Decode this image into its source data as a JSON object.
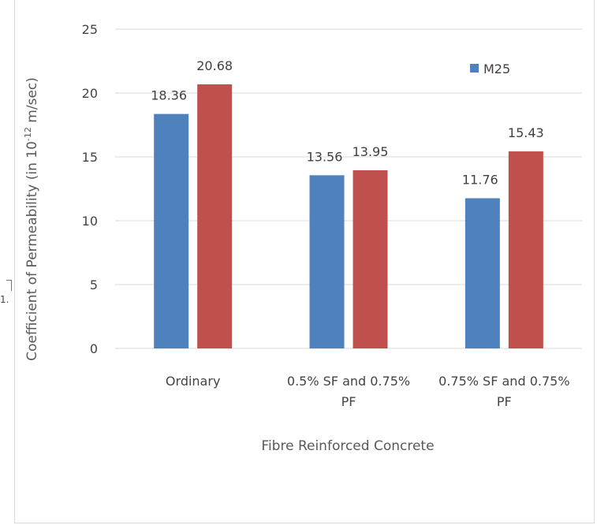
{
  "chart_data": {
    "type": "bar",
    "title": "",
    "xlabel": "Fibre Reinforced Concrete",
    "ylabel": {
      "prefix": "Coefficient of Permeability (in 10",
      "exponent": "-12",
      "suffix": " m/sec)"
    },
    "ylim": [
      0,
      25
    ],
    "yticks": [
      "0",
      "5",
      "10",
      "15",
      "20",
      "25"
    ],
    "grid": true,
    "legend_position": "top-right",
    "categories": [
      [
        "Ordinary"
      ],
      [
        "0.5% SF and 0.75%",
        "PF"
      ],
      [
        "0.75% SF and 0.75%",
        "PF"
      ]
    ],
    "series": [
      {
        "name": "M25",
        "color": "#4f81bd",
        "values": [
          18.36,
          13.56,
          11.76
        ],
        "labels": [
          "18.36",
          "13.56",
          "11.76"
        ]
      },
      {
        "name": "",
        "color": "#c0504d",
        "values": [
          20.68,
          13.95,
          15.43
        ],
        "labels": [
          "20.68",
          "13.95",
          "15.43"
        ]
      }
    ]
  },
  "left_fragment_text": "1."
}
